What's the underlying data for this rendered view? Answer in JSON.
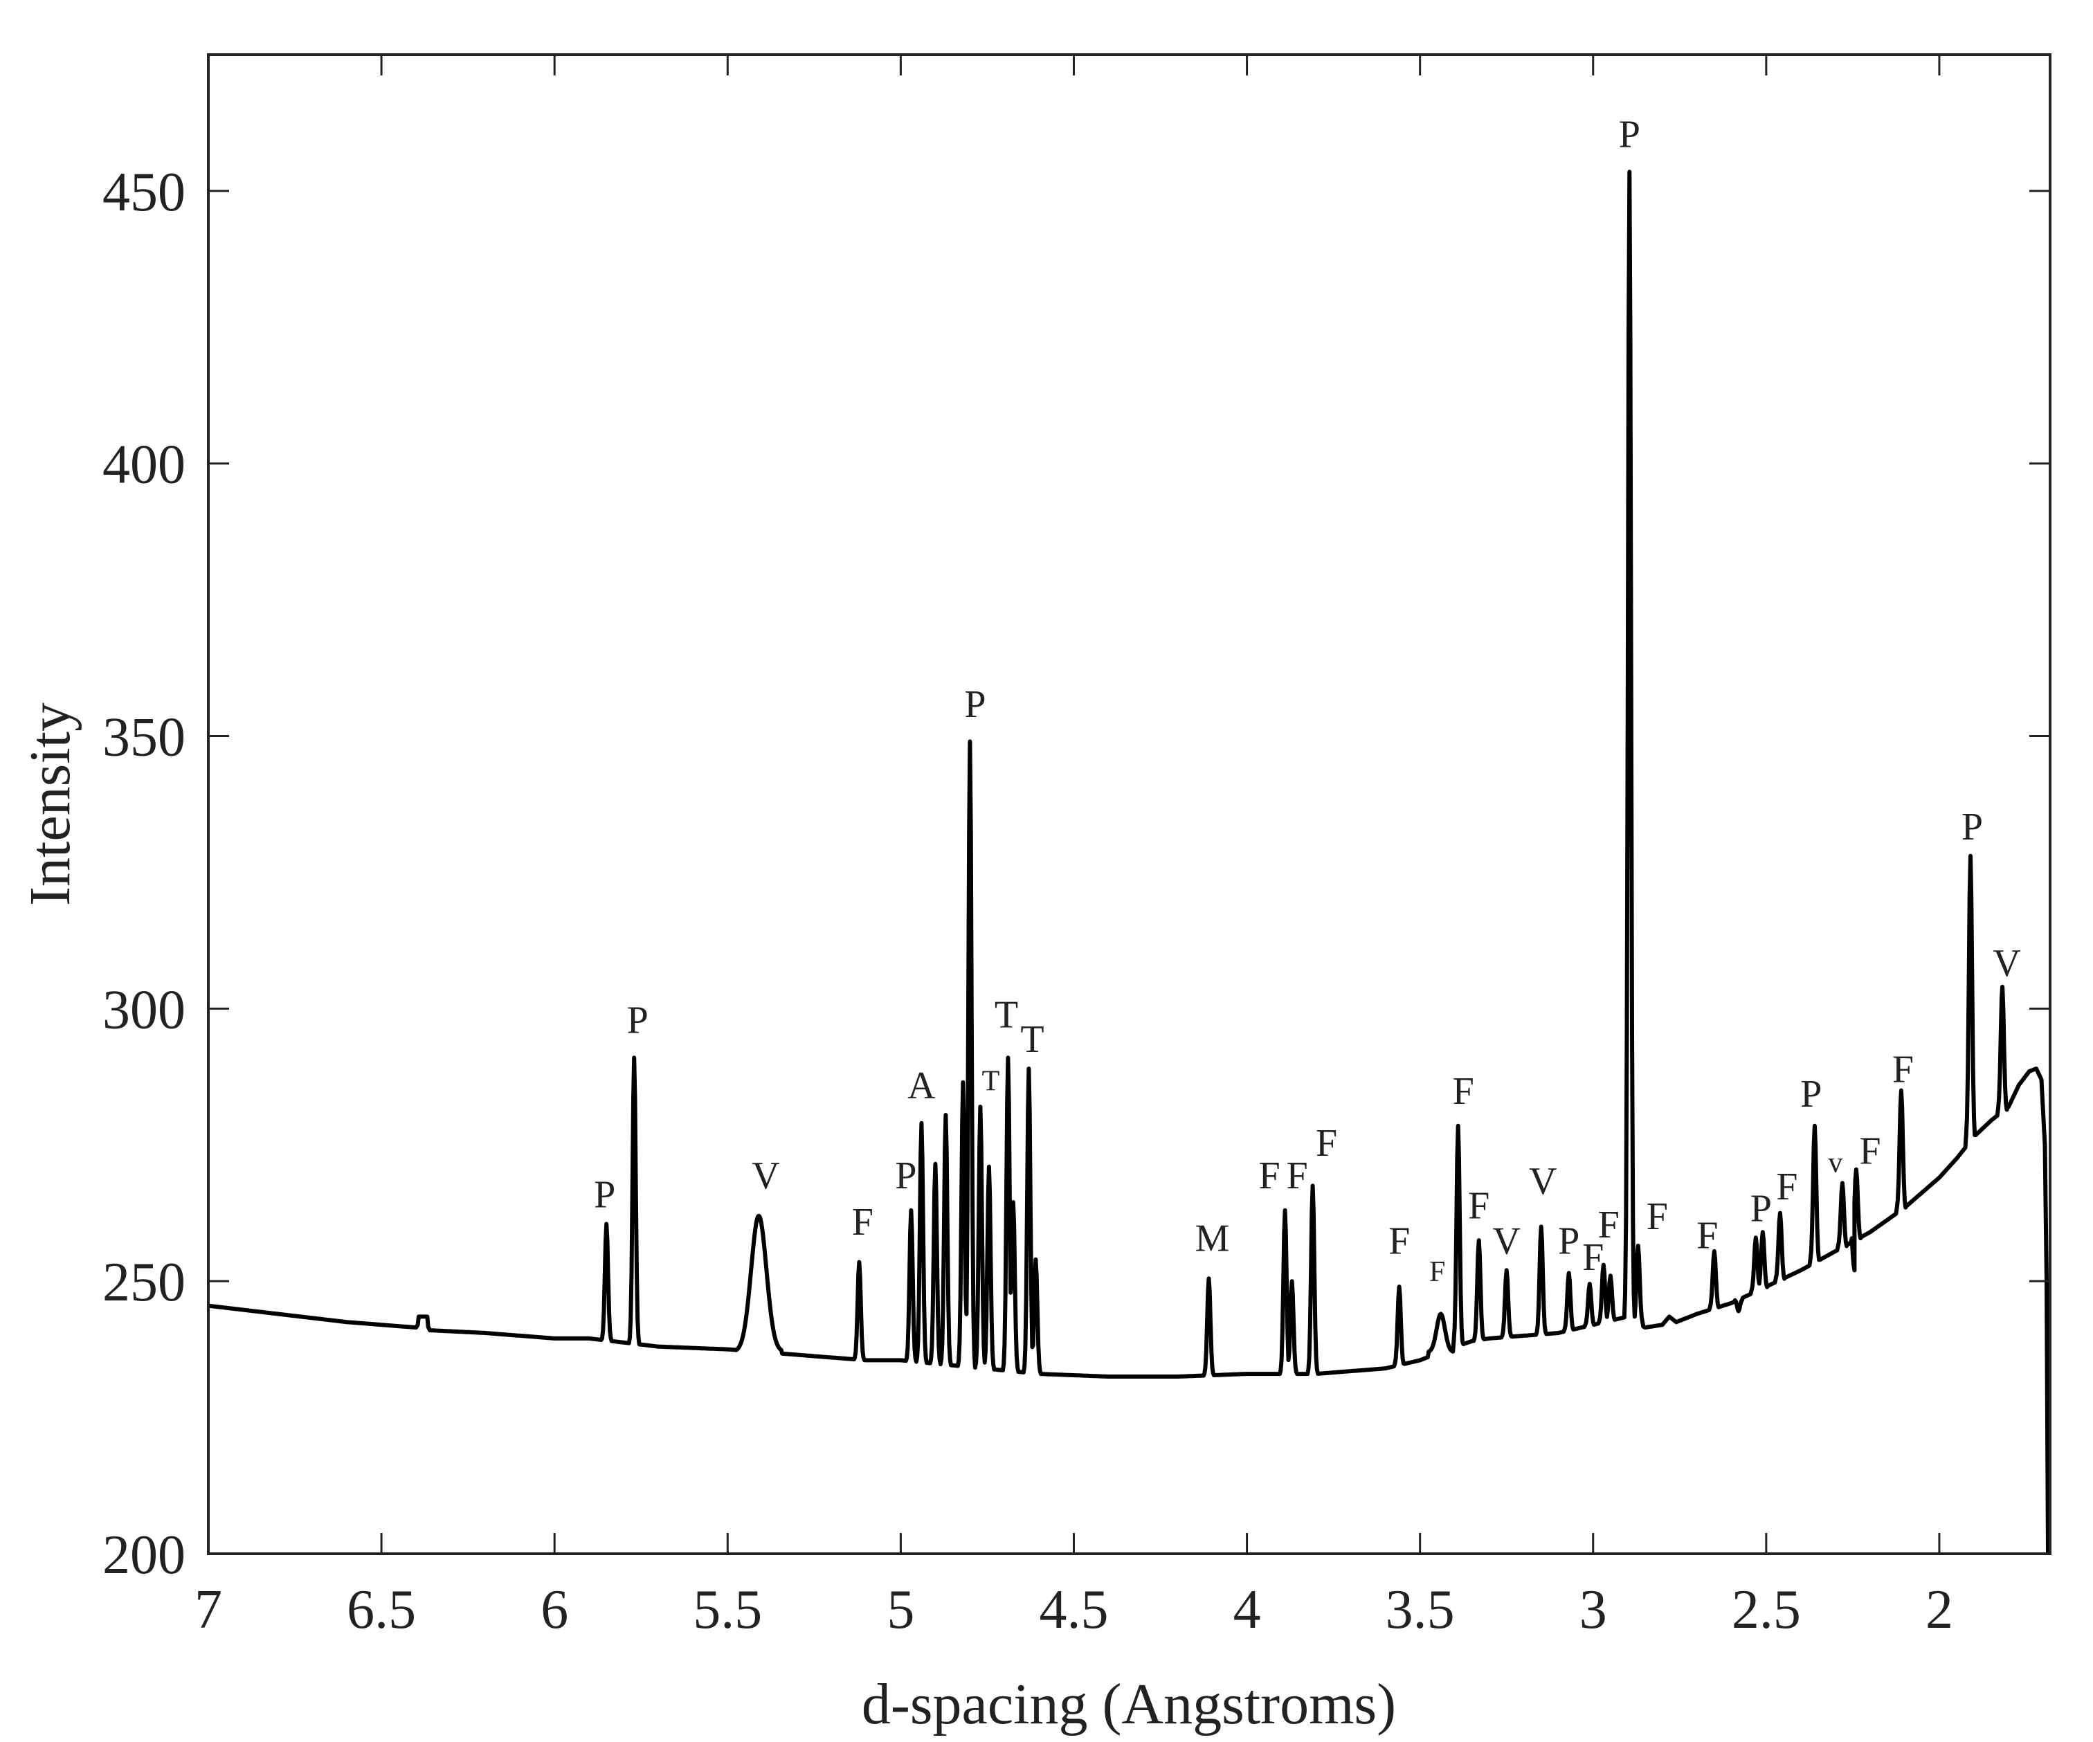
{
  "chart_data": {
    "type": "line",
    "title": "",
    "xlabel": "d-spacing (Angstroms)",
    "ylabel": "Intensity",
    "xlim": [
      7,
      1.68
    ],
    "x_reversed": true,
    "ylim": [
      200,
      475
    ],
    "xticks": [
      7,
      6.5,
      6,
      5.5,
      5,
      4.5,
      4,
      3.5,
      3,
      2.5,
      2
    ],
    "xtick_labels": [
      "7",
      "6.5",
      "6",
      "5.5",
      "5",
      "4.5",
      "4",
      "3.5",
      "3",
      "2.5",
      "2"
    ],
    "yticks": [
      200,
      250,
      300,
      350,
      400,
      450
    ],
    "ytick_labels": [
      "200",
      "250",
      "300",
      "350",
      "400",
      "450"
    ],
    "grid": false,
    "box": true,
    "legend": null,
    "line_color": "#000000",
    "baseline": [
      [
        7.0,
        245.5
      ],
      [
        6.8,
        244.0
      ],
      [
        6.6,
        242.5
      ],
      [
        6.4,
        241.5
      ],
      [
        6.38,
        243.5
      ],
      [
        6.36,
        241.0
      ],
      [
        6.2,
        240.5
      ],
      [
        6.0,
        239.5
      ],
      [
        5.9,
        239.5
      ],
      [
        5.7,
        238.0
      ],
      [
        5.5,
        237.5
      ],
      [
        5.3,
        236.5
      ],
      [
        5.1,
        235.5
      ],
      [
        5.0,
        235.5
      ],
      [
        4.6,
        233.0
      ],
      [
        4.4,
        232.5
      ],
      [
        4.2,
        232.5
      ],
      [
        4.0,
        233.0
      ],
      [
        3.8,
        233.0
      ],
      [
        3.6,
        234.0
      ],
      [
        3.5,
        235.5
      ],
      [
        3.42,
        237.5
      ],
      [
        3.35,
        239.0
      ],
      [
        3.3,
        239.5
      ],
      [
        3.2,
        240.0
      ],
      [
        3.1,
        240.5
      ],
      [
        3.0,
        242.0
      ],
      [
        2.9,
        243.5
      ],
      [
        2.85,
        241.5
      ],
      [
        2.8,
        242.0
      ],
      [
        2.78,
        243.5
      ],
      [
        2.76,
        242.5
      ],
      [
        2.7,
        244.0
      ],
      [
        2.6,
        246.0
      ],
      [
        2.5,
        249.0
      ],
      [
        2.4,
        252.0
      ],
      [
        2.3,
        255.5
      ],
      [
        2.2,
        259.0
      ],
      [
        2.1,
        263.5
      ],
      [
        2.0,
        269.0
      ],
      [
        1.95,
        272.5
      ],
      [
        1.9,
        276.5
      ],
      [
        1.85,
        279.5
      ],
      [
        1.8,
        282.0
      ],
      [
        1.77,
        286.0
      ],
      [
        1.74,
        288.5
      ],
      [
        1.72,
        289.0
      ],
      [
        1.705,
        287.0
      ],
      [
        1.695,
        275.0
      ],
      [
        1.69,
        250.0
      ],
      [
        1.686,
        200.0
      ]
    ],
    "peaks": [
      {
        "d": 6.38,
        "intensity": 243.5,
        "label": ""
      },
      {
        "d": 5.85,
        "intensity": 260.5,
        "label": "P"
      },
      {
        "d": 5.77,
        "intensity": 291.0,
        "label": "P"
      },
      {
        "d": 5.41,
        "intensity": 262.0,
        "label": "V"
      },
      {
        "d": 5.12,
        "intensity": 253.5,
        "label": "F"
      },
      {
        "d": 4.97,
        "intensity": 263.0,
        "label": "P"
      },
      {
        "d": 4.94,
        "intensity": 279.0,
        "label": "A"
      },
      {
        "d": 4.9,
        "intensity": 271.5,
        "label": ""
      },
      {
        "d": 4.87,
        "intensity": 280.5,
        "label": ""
      },
      {
        "d": 4.82,
        "intensity": 286.5,
        "label": ""
      },
      {
        "d": 4.8,
        "intensity": 349.0,
        "label": "P"
      },
      {
        "d": 4.77,
        "intensity": 282.0,
        "label": "T"
      },
      {
        "d": 4.745,
        "intensity": 271.0,
        "label": ""
      },
      {
        "d": 4.69,
        "intensity": 291.0,
        "label": "T"
      },
      {
        "d": 4.675,
        "intensity": 264.5,
        "label": ""
      },
      {
        "d": 4.63,
        "intensity": 289.0,
        "label": "T"
      },
      {
        "d": 4.61,
        "intensity": 254.0,
        "label": ""
      },
      {
        "d": 4.11,
        "intensity": 250.5,
        "label": "M"
      },
      {
        "d": 3.89,
        "intensity": 263.0,
        "label": "F"
      },
      {
        "d": 3.87,
        "intensity": 250.0,
        "label": "F"
      },
      {
        "d": 3.81,
        "intensity": 267.5,
        "label": "F"
      },
      {
        "d": 3.56,
        "intensity": 249.0,
        "label": "F"
      },
      {
        "d": 3.44,
        "intensity": 244.0,
        "label": "F"
      },
      {
        "d": 3.39,
        "intensity": 278.5,
        "label": "F"
      },
      {
        "d": 3.33,
        "intensity": 257.5,
        "label": "F"
      },
      {
        "d": 3.25,
        "intensity": 252.0,
        "label": "V"
      },
      {
        "d": 3.15,
        "intensity": 260.0,
        "label": "V"
      },
      {
        "d": 3.07,
        "intensity": 251.5,
        "label": "P"
      },
      {
        "d": 3.01,
        "intensity": 249.5,
        "label": "F"
      },
      {
        "d": 2.97,
        "intensity": 253.0,
        "label": "F"
      },
      {
        "d": 2.95,
        "intensity": 251.0,
        "label": ""
      },
      {
        "d": 2.895,
        "intensity": 453.5,
        "label": "P"
      },
      {
        "d": 2.87,
        "intensity": 256.5,
        "label": "F"
      },
      {
        "d": 2.65,
        "intensity": 255.5,
        "label": "F"
      },
      {
        "d": 2.53,
        "intensity": 258.0,
        "label": "P"
      },
      {
        "d": 2.51,
        "intensity": 259.0,
        "label": ""
      },
      {
        "d": 2.46,
        "intensity": 262.5,
        "label": "F"
      },
      {
        "d": 2.36,
        "intensity": 278.5,
        "label": "P"
      },
      {
        "d": 2.28,
        "intensity": 268.0,
        "label": "v"
      },
      {
        "d": 2.24,
        "intensity": 270.5,
        "label": "F"
      },
      {
        "d": 2.11,
        "intensity": 285.0,
        "label": "F"
      },
      {
        "d": 1.91,
        "intensity": 328.0,
        "label": "P"
      },
      {
        "d": 1.818,
        "intensity": 304.0,
        "label": "V"
      }
    ],
    "dips": [
      {
        "d": 2.58,
        "intensity": 244.5
      },
      {
        "d": 2.245,
        "intensity": 252.0
      }
    ],
    "annotations": [
      {
        "text": "P",
        "d": 5.855,
        "y": 262.0
      },
      {
        "text": "P",
        "d": 5.76,
        "y": 294.0
      },
      {
        "text": "V",
        "d": 5.39,
        "y": 265.5
      },
      {
        "text": "F",
        "d": 5.11,
        "y": 257.0
      },
      {
        "text": "P",
        "d": 4.985,
        "y": 265.5
      },
      {
        "text": "A",
        "d": 4.94,
        "y": 282.0
      },
      {
        "text": "P",
        "d": 4.785,
        "y": 352.0
      },
      {
        "text": "T",
        "d": 4.74,
        "y": 283.5,
        "small": true
      },
      {
        "text": "T",
        "d": 4.695,
        "y": 295.0
      },
      {
        "text": "T",
        "d": 4.62,
        "y": 290.5
      },
      {
        "text": "M",
        "d": 4.1,
        "y": 254.0
      },
      {
        "text": "F",
        "d": 3.935,
        "y": 265.5
      },
      {
        "text": "F",
        "d": 3.855,
        "y": 265.5
      },
      {
        "text": "F",
        "d": 3.77,
        "y": 271.5
      },
      {
        "text": "F",
        "d": 3.56,
        "y": 253.5
      },
      {
        "text": "F",
        "d": 3.45,
        "y": 248.5,
        "small": true
      },
      {
        "text": "F",
        "d": 3.375,
        "y": 281.0
      },
      {
        "text": "F",
        "d": 3.33,
        "y": 260.0
      },
      {
        "text": "V",
        "d": 3.25,
        "y": 253.5
      },
      {
        "text": "V",
        "d": 3.145,
        "y": 264.5
      },
      {
        "text": "P",
        "d": 3.07,
        "y": 253.5
      },
      {
        "text": "F",
        "d": 3.0,
        "y": 250.5
      },
      {
        "text": "F",
        "d": 2.955,
        "y": 256.5
      },
      {
        "text": "P",
        "d": 2.895,
        "y": 456.5
      },
      {
        "text": "F",
        "d": 2.815,
        "y": 258.0
      },
      {
        "text": "F",
        "d": 2.67,
        "y": 254.5
      },
      {
        "text": "P",
        "d": 2.515,
        "y": 259.5
      },
      {
        "text": "F",
        "d": 2.44,
        "y": 263.5
      },
      {
        "text": "P",
        "d": 2.37,
        "y": 280.5
      },
      {
        "text": "v",
        "d": 2.3,
        "y": 268.5,
        "small": true
      },
      {
        "text": "F",
        "d": 2.2,
        "y": 270.0
      },
      {
        "text": "F",
        "d": 2.105,
        "y": 285.0
      },
      {
        "text": "P",
        "d": 1.905,
        "y": 329.5
      },
      {
        "text": "V",
        "d": 1.805,
        "y": 304.5
      }
    ]
  }
}
